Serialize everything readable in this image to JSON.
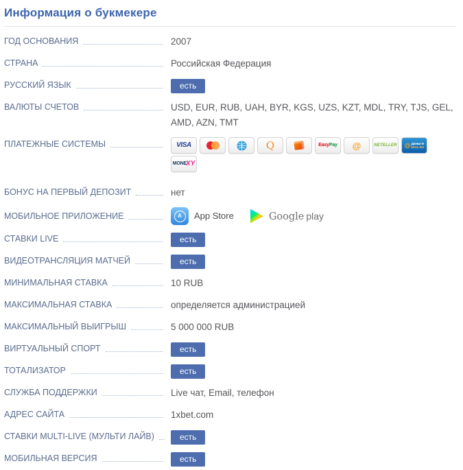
{
  "title": "Информация о букмекере",
  "colors": {
    "title": "#3c64ad",
    "label": "#5a6c8f",
    "value": "#55565a",
    "badge_bg": "#4d6dae",
    "leader_dots": "#a3b4d0"
  },
  "table": {
    "rows": [
      {
        "type": "text",
        "label": "ГОД ОСНОВАНИЯ",
        "value": "2007"
      },
      {
        "type": "text",
        "label": "СТРАНА",
        "value": "Российская Федерация"
      },
      {
        "type": "badge",
        "label": "РУССКИЙ ЯЗЫК",
        "value": "есть"
      },
      {
        "type": "text",
        "label": "ВАЛЮТЫ СЧЕТОВ",
        "value": "USD, EUR, RUB, UAH, BYR, KGS, UZS, KZT, MDL, TRY, TJS, GEL, AMD, AZN, TMT"
      },
      {
        "type": "payments",
        "label": "ПЛАТЕЖНЫЕ СИСТЕМЫ",
        "icons": [
          {
            "name": "visa",
            "text": "VISA"
          },
          {
            "name": "mastercard"
          },
          {
            "name": "webmoney"
          },
          {
            "name": "qiwi",
            "text": "Q"
          },
          {
            "name": "yandex-money"
          },
          {
            "name": "easypay",
            "text_a": "Easy",
            "text_b": "Pay"
          },
          {
            "name": "money-mail-ru",
            "text": "@"
          },
          {
            "name": "neteller",
            "text": "NETELLER"
          },
          {
            "name": "dengi-mail-ru",
            "at": "@",
            "line1": "ДЕНЬГИ",
            "line2": "MAIL.RU"
          },
          {
            "name": "monexy",
            "text_a": "MONE",
            "text_b": "XY"
          }
        ]
      },
      {
        "type": "text",
        "label": "БОНУС НА ПЕРВЫЙ ДЕПОЗИТ",
        "value": "нет"
      },
      {
        "type": "apps",
        "label": "МОБИЛЬНОЕ ПРИЛОЖЕНИЕ",
        "apps": [
          {
            "name": "app-store",
            "glyph": "A",
            "label": "App Store"
          },
          {
            "name": "google-play",
            "label_serif": "Google",
            "label_sans": "play"
          }
        ]
      },
      {
        "type": "badge",
        "label": "СТАВКИ LIVE",
        "value": "есть"
      },
      {
        "type": "badge",
        "label": "ВИДЕОТРАНСЛЯЦИЯ МАТЧЕЙ",
        "value": "есть"
      },
      {
        "type": "text",
        "label": "МИНИМАЛЬНАЯ СТАВКА",
        "value": "10 RUB"
      },
      {
        "type": "text",
        "label": "МАКСИМАЛЬНАЯ СТАВКА",
        "value": "определяется администрацией"
      },
      {
        "type": "text",
        "label": "МАКСИМАЛЬНЫЙ ВЫИГРЫШ",
        "value": "5 000 000 RUB"
      },
      {
        "type": "badge",
        "label": "ВИРТУАЛЬНЫЙ СПОРТ",
        "value": "есть"
      },
      {
        "type": "badge",
        "label": "ТОТАЛИЗАТОР",
        "value": "есть"
      },
      {
        "type": "text",
        "label": "СЛУЖБА ПОДДЕРЖКИ",
        "value": "Live чат, Email, телефон"
      },
      {
        "type": "text",
        "label": "АДРЕС САЙТА",
        "value": "1xbet.com"
      },
      {
        "type": "badge",
        "label": "СТАВКИ MULTI-LIVE (МУЛЬТИ ЛАЙВ)",
        "value": "есть"
      },
      {
        "type": "badge",
        "label": "МОБИЛЬНАЯ ВЕРСИЯ",
        "value": "есть"
      }
    ]
  }
}
